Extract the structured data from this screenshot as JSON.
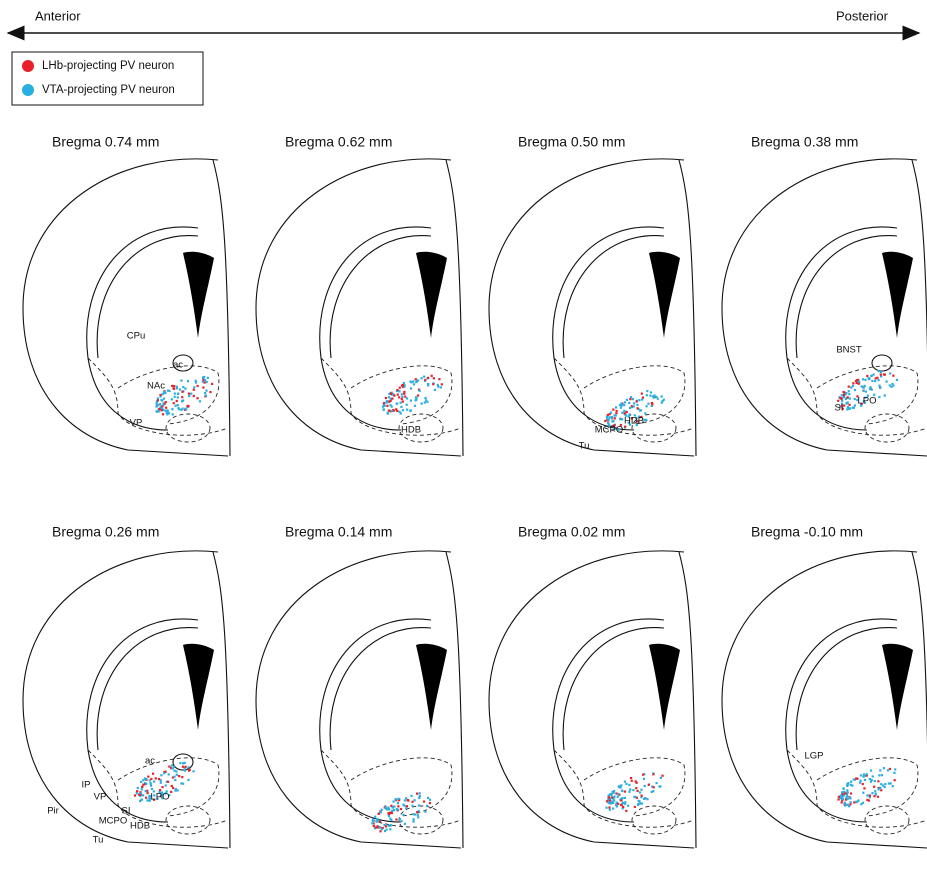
{
  "axis": {
    "left": "Anterior",
    "right": "Posterior"
  },
  "legend": [
    {
      "label": "LHb-projecting PV neuron",
      "color": "#e8202a"
    },
    {
      "label": "VTA-projecting PV neuron",
      "color": "#29aee0"
    }
  ],
  "panels": [
    {
      "title": "Bregma 0.74 mm",
      "labels": [
        "CPu",
        "ac",
        "NAc",
        "VP"
      ]
    },
    {
      "title": "Bregma 0.62 mm",
      "labels": [
        "HDB"
      ]
    },
    {
      "title": "Bregma 0.50 mm",
      "labels": [
        "Tu",
        "MCPO",
        "HDB"
      ]
    },
    {
      "title": "Bregma 0.38 mm",
      "labels": [
        "BNST",
        "SI",
        "LPO"
      ]
    },
    {
      "title": "Bregma 0.26 mm",
      "labels": [
        "ac",
        "IP",
        "VP",
        "LPO",
        "SI",
        "MCPO",
        "HDB",
        "Pir",
        "Tu"
      ]
    },
    {
      "title": "Bregma 0.14 mm",
      "labels": []
    },
    {
      "title": "Bregma 0.02 mm",
      "labels": []
    },
    {
      "title": "Bregma -0.10 mm",
      "labels": [
        "LGP"
      ]
    }
  ]
}
